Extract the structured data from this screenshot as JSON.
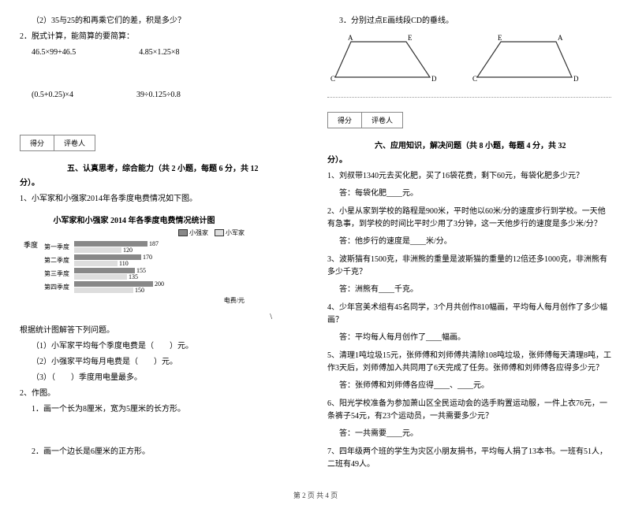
{
  "left": {
    "q1_2": "（2）35与25的和再乘它们的差，积是多少？",
    "q2": "2．脱式计算，能简算的要简算：",
    "calc1a": "46.5×99+46.5",
    "calc1b": "4.85×1.25×8",
    "calc2a": "(0.5+0.25)×4",
    "calc2b": "39÷0.125÷0.8",
    "score_label1": "得分",
    "score_label2": "评卷人",
    "section5": "五、认真思考，综合能力（共 2 小题，每题 6 分，共 12",
    "section5_end": "分）。",
    "chart_intro": "1、小军家和小强家2014年各季度电费情况如下图。",
    "chart_title": "小军家和小强家 2014 年各季度电费情况统计图",
    "legend1": "小强家",
    "legend2": "小军家",
    "ylabel": "季度",
    "quarters": [
      "第一季度",
      "第二季度",
      "第三季度",
      "第四季度"
    ],
    "chart_data": [
      {
        "a": 187,
        "b": 120,
        "aw": 93,
        "bw": 60
      },
      {
        "a": 170,
        "b": 110,
        "aw": 85,
        "bw": 55
      },
      {
        "a": 155,
        "b": 135,
        "aw": 77,
        "bw": 67
      },
      {
        "a": 200,
        "b": 150,
        "aw": 100,
        "bw": 75
      }
    ],
    "colors": {
      "a": "#888888",
      "b": "#dddddd"
    },
    "xlabel": "电费/元",
    "chart_q": "根据统计图解答下列问题。",
    "chart_q1": "（1）小军家平均每个季度电费是（　　）元。",
    "chart_q2": "（2）小强家平均每月电费是（　　）元。",
    "chart_q3": "（3）（　　）季度用电量最多。",
    "q2draw": "2、作图。",
    "q2draw1": "1．画一个长为8厘米，宽为5厘米的长方形。",
    "q2draw2": "2．画一个边长是6厘米的正方形。"
  },
  "right": {
    "q3": "3．分别过点E画线段CD的垂线。",
    "score_label1": "得分",
    "score_label2": "评卷人",
    "section6": "六、应用知识，解决问题（共 8 小题，每题 4 分，共 32",
    "section6_end": "分）。",
    "p1": "1、刘叔带1340元去买化肥，买了16袋花费，剩下60元，每袋化肥多少元？",
    "a1": "答：每袋化肥____元。",
    "p2": "2、小星从家到学校的路程是900米，平时他以60米/分的速度步行到学校。一天他有急事，到学校的时间比平时少用了3分钟，这一天他步行的速度是多少米/分？",
    "a2": "答：他步行的速度是____米/分。",
    "p3": "3、波斯猫有1500克，非洲熊的重量是波斯猫的重量的12倍还多1000克，非洲熊有多少千克？",
    "a3": "答：洲熊有____千克。",
    "p4": "4、少年宫美术组有45名同学，3个月共创作810幅画，平均每人每月创作了多少幅画？",
    "a4": "答：平均每人每月创作了____幅画。",
    "p5": "5、清理1吨垃圾15元，张师傅和刘师傅共清除108吨垃圾，张师傅每天清理8吨，工作3天后，刘师傅加入共同用了6天完成了任务。张师傅和刘师傅各应得多少元？",
    "a5": "答：张师傅和刘师傅各应得____、____元。",
    "p6": "6、阳光学校准备为参加萧山区全民运动会的选手购置运动服，一件上衣76元，一条裤子54元，有23个运动员，一共需要多少元？",
    "a6": "答：一共需要____元。",
    "p7": "7、四年级两个班的学生为灾区小朋友捐书，平均每人捐了13本书。一班有51人，二班有49人。"
  },
  "footer": "第 2 页 共 4 页",
  "diagram": {
    "stroke": "#333",
    "stroke_width": 1.2
  }
}
